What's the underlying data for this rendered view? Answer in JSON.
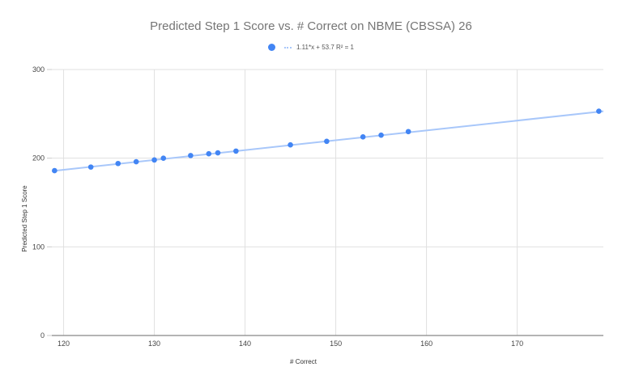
{
  "chart_data": {
    "type": "scatter",
    "title": "Predicted Step 1 Score vs. # Correct on NBME (CBSSA) 26",
    "xlabel": "# Correct",
    "ylabel": "Predicted Step 1 Score",
    "xlim": [
      118.7,
      179.5
    ],
    "ylim": [
      0,
      300
    ],
    "xticks": [
      120,
      130,
      140,
      150,
      160,
      170
    ],
    "yticks": [
      0,
      100,
      200,
      300
    ],
    "grid": true,
    "legend_position": "top",
    "series": [
      {
        "name": "Predicted Step 1 Score",
        "color": "#4285f4",
        "x": [
          119,
          123,
          126,
          128,
          130,
          131,
          134,
          136,
          137,
          139,
          145,
          149,
          153,
          155,
          158,
          179
        ],
        "y": [
          186,
          190,
          194,
          196,
          198,
          200,
          203,
          205,
          206,
          208,
          215,
          219,
          224,
          226,
          230,
          253
        ]
      }
    ],
    "trendline": {
      "type": "linear",
      "slope": 1.11,
      "intercept": 53.7,
      "r_squared": 1,
      "label": "1.11*x + 53.7 R² = 1",
      "color": "#a8c7fa"
    }
  },
  "legend": {
    "trendline_label": "1.11*x + 53.7 R² = 1"
  }
}
